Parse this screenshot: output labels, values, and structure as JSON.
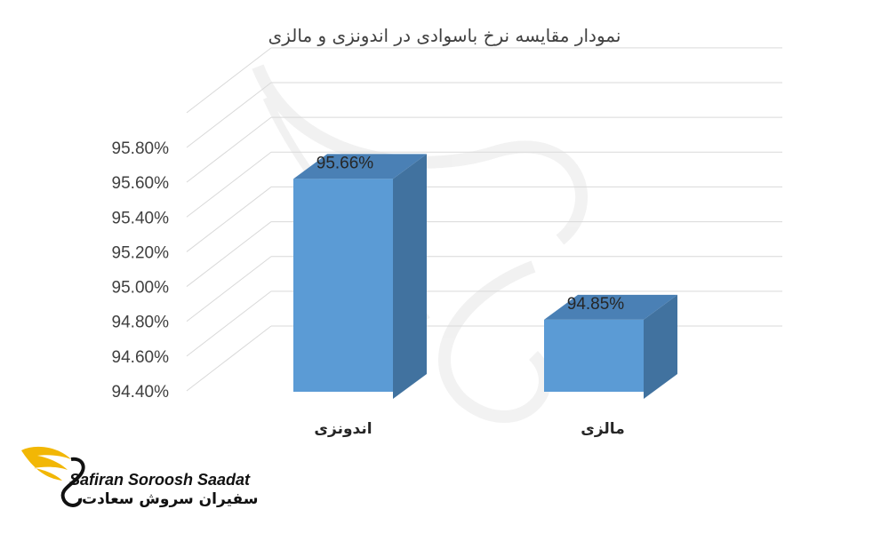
{
  "chart_data": {
    "type": "bar",
    "title": "نمودار مقایسه نرخ باسوادی در اندونزی و مالزی",
    "categories": [
      "اندونزی",
      "مالزی"
    ],
    "values": [
      95.66,
      94.85
    ],
    "data_labels": [
      "95.66%",
      "94.85%"
    ],
    "ylim": [
      94.4,
      95.8
    ],
    "yticks": [
      "94.40%",
      "94.60%",
      "94.80%",
      "95.00%",
      "95.20%",
      "95.40%",
      "95.60%",
      "95.80%"
    ],
    "bar_style": "3d",
    "grid": true,
    "legend": "none",
    "colors": {
      "bar_front": "#5b9bd5",
      "bar_side": "#41729f",
      "bar_top": "#4a80b5",
      "grid": "#d9d9d9"
    }
  },
  "logo": {
    "text_en": "Safiran Soroosh Saadat",
    "text_fa": "سفیران سروش سعادت"
  }
}
